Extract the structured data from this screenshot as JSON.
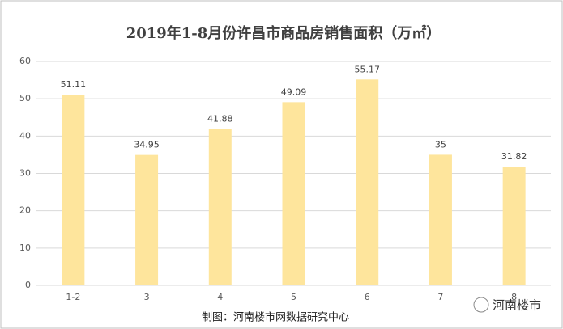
{
  "chart_data": {
    "type": "bar",
    "title": "2019年1-8月份许昌市商品房销售面积（万㎡）",
    "categories": [
      "1-2",
      "3",
      "4",
      "5",
      "6",
      "7",
      "8"
    ],
    "values": [
      51.11,
      34.95,
      41.88,
      49.09,
      55.17,
      35,
      31.82
    ],
    "color": "#fee59c",
    "ylim": [
      0,
      60
    ],
    "yticks": [
      0,
      10,
      20,
      30,
      40,
      50,
      60
    ],
    "grid": true,
    "footer": "制图：河南楼市网数据研究中心",
    "logo_text": "河南楼市"
  }
}
